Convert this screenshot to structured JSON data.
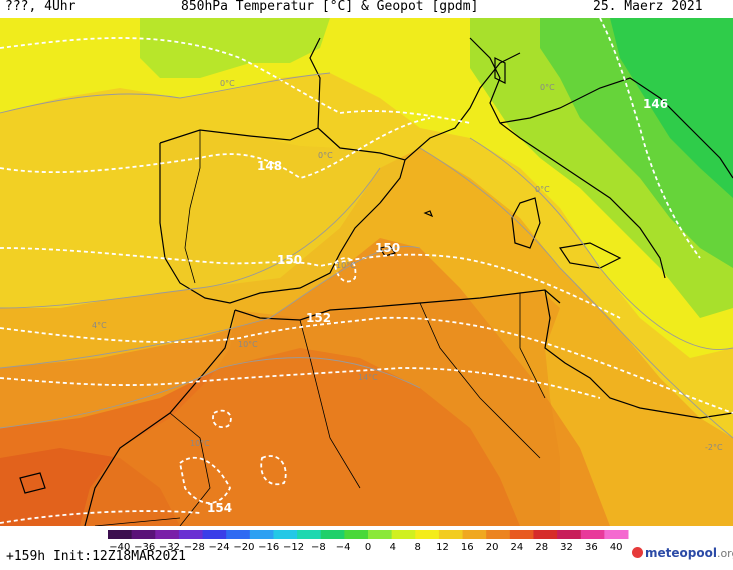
{
  "header": {
    "left": "???, 4Uhr",
    "title": "850hPa Temperatur [°C] & Geopot [gpdm]",
    "date": "25. Maerz 2021"
  },
  "footer": {
    "run": "+159h  Init:12Z18MAR2021",
    "brand": "meteopool",
    "brand_tld": ".org"
  },
  "legend": {
    "ticks": [
      "-40",
      "-36",
      "-32",
      "-28",
      "-24",
      "-20",
      "-16",
      "-12",
      "-8",
      "-4",
      "0",
      "4",
      "8",
      "12",
      "16",
      "20",
      "24",
      "28",
      "32",
      "36",
      "40"
    ],
    "colors": [
      "#3b0f4e",
      "#5a1278",
      "#7a1fa8",
      "#6a2fd2",
      "#3a3ee8",
      "#2f6af2",
      "#2da0f2",
      "#24c8e6",
      "#1ed8b0",
      "#20d06a",
      "#4ad83a",
      "#8ae83a",
      "#d0f020",
      "#f4ec1a",
      "#f2cc20",
      "#f0a820",
      "#ec8420",
      "#e85a20",
      "#d62c2a",
      "#c81e5a",
      "#e83a9a",
      "#f46ad0"
    ]
  },
  "map": {
    "geopotential_labels": [
      "146",
      "148",
      "150",
      "150",
      "152",
      "154"
    ],
    "isotherm_labels": [
      "0°C",
      "0°C",
      "0°C",
      "0°C",
      "4°C",
      "10°C",
      "10°C",
      "10°C",
      "14°C",
      "-2°C"
    ]
  }
}
